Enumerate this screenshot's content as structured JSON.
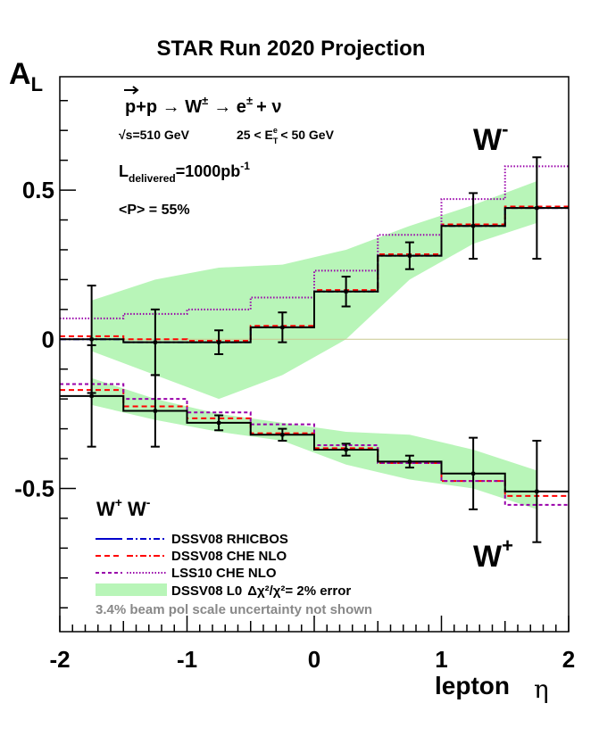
{
  "chart_data": {
    "type": "line",
    "title": "STAR Run 2020 Projection",
    "ylabel_main": "A",
    "ylabel_sub": "L",
    "xlabel": "lepton",
    "xlabel_symbol": "η",
    "xlim": [
      -2,
      2
    ],
    "ylim": [
      -0.98,
      0.88
    ],
    "xticks": [
      -2,
      -1,
      0,
      1,
      2
    ],
    "xtick_labels": [
      "-2",
      "-1",
      "0",
      "1",
      "2"
    ],
    "yticks": [
      -0.5,
      0,
      0.5
    ],
    "ytick_labels": [
      "-0.5",
      "0",
      "0.5"
    ],
    "grid": false,
    "bin_edges": [
      -2,
      -1.5,
      -1,
      -0.5,
      0,
      0.5,
      1,
      1.5,
      2
    ],
    "reaction": {
      "p_arrow": "p",
      "main": "+p → W",
      "pm": "±",
      "tail": "→ e",
      "pm2": "±",
      "nu": "+ ν"
    },
    "energy": {
      "sqrt": "√s=510 GeV",
      "range_pre": "25 < E",
      "range_sup": "e",
      "range_sub": "T",
      "range_post": "< 50 GeV"
    },
    "lumi": {
      "pre": "L",
      "sub": "delivered",
      "mid": "=1000pb",
      "sup": "-1"
    },
    "polarization": "<P> = 55%",
    "wminus_label": "W",
    "wminus_sup": "-",
    "wplus_label": "W",
    "wplus_sup": "+",
    "legend_header": {
      "w1": "W",
      "w1sup": "+",
      "w2": "W",
      "w2sup": "-"
    },
    "legend": [
      {
        "name": "DSSV08  RHICBOS",
        "style": "blue"
      },
      {
        "name": "DSSV08  CHE NLO",
        "style": "red"
      },
      {
        "name": "LSS10 CHE NLO",
        "style": "purple"
      },
      {
        "name": "DSSV08 L0",
        "extra": "Δχ²/χ²= 2% error",
        "style": "band"
      }
    ],
    "footnote": "3.4% beam pol scale uncertainty not shown",
    "colors": {
      "band": "#b8f5b8",
      "dssv_rhicbos": "#0000cc",
      "dssv_che": "#ff0000",
      "lss10": "#9900aa",
      "data": "#000000",
      "zero_line": "#c8c890"
    },
    "series": [
      {
        "name": "W- data",
        "x": [
          -1.75,
          -1.25,
          -0.75,
          -0.25,
          0.25,
          0.75,
          1.25,
          1.75
        ],
        "y": [
          0.0,
          -0.01,
          -0.01,
          0.04,
          0.16,
          0.28,
          0.38,
          0.44
        ],
        "yerr": [
          0.18,
          0.11,
          0.04,
          0.05,
          0.05,
          0.045,
          0.11,
          0.17
        ]
      },
      {
        "name": "W- DSSV08 RHICBOS",
        "y": [
          0.0,
          -0.01,
          -0.01,
          0.04,
          0.16,
          0.28,
          0.38,
          0.44
        ]
      },
      {
        "name": "W- DSSV08 CHE NLO",
        "y": [
          0.01,
          0.0,
          -0.005,
          0.045,
          0.165,
          0.285,
          0.385,
          0.445
        ]
      },
      {
        "name": "W- LSS10 CHE NLO",
        "y": [
          0.07,
          0.085,
          0.1,
          0.14,
          0.23,
          0.35,
          0.47,
          0.58
        ]
      },
      {
        "name": "W+ data",
        "x": [
          -1.75,
          -1.25,
          -0.75,
          -0.25,
          0.25,
          0.75,
          1.25,
          1.75
        ],
        "y": [
          -0.19,
          -0.24,
          -0.28,
          -0.32,
          -0.37,
          -0.41,
          -0.45,
          -0.51
        ],
        "yerr": [
          0.17,
          0.12,
          0.025,
          0.02,
          0.02,
          0.02,
          0.12,
          0.17
        ]
      },
      {
        "name": "W+ DSSV08 CHE NLO",
        "y": [
          -0.17,
          -0.225,
          -0.265,
          -0.315,
          -0.365,
          -0.415,
          -0.475,
          -0.525
        ]
      },
      {
        "name": "W+ LSS10 CHE NLO",
        "y": [
          -0.15,
          -0.2,
          -0.245,
          -0.285,
          -0.355,
          -0.415,
          -0.475,
          -0.555
        ]
      }
    ],
    "bands": {
      "wminus": {
        "x": [
          -1.75,
          -1.25,
          -0.75,
          -0.25,
          0.25,
          0.75,
          1.25,
          1.75
        ],
        "upper": [
          0.13,
          0.2,
          0.24,
          0.25,
          0.3,
          0.38,
          0.45,
          0.53
        ],
        "lower": [
          -0.04,
          -0.12,
          -0.2,
          -0.12,
          0.0,
          0.2,
          0.32,
          0.39
        ]
      },
      "wplus": {
        "x": [
          -1.75,
          -1.25,
          -0.75,
          -0.25,
          0.25,
          0.75,
          1.25,
          1.75
        ],
        "upper": [
          -0.13,
          -0.2,
          -0.25,
          -0.28,
          -0.31,
          -0.32,
          -0.37,
          -0.44
        ],
        "lower": [
          -0.22,
          -0.27,
          -0.31,
          -0.34,
          -0.42,
          -0.47,
          -0.5,
          -0.57
        ]
      }
    }
  }
}
